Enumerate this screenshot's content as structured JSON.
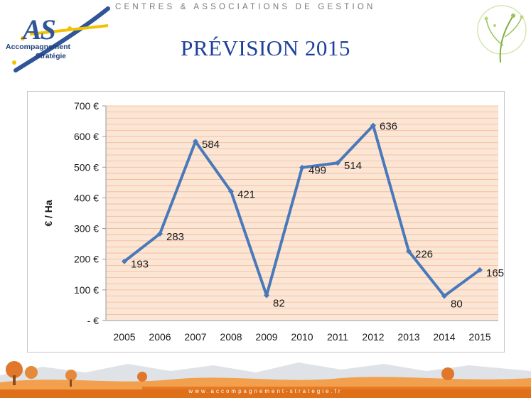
{
  "header": {
    "tagline": "CENTRES & ASSOCIATIONS DE GESTION"
  },
  "logo": {
    "mark": "AS",
    "line1": "Accompagnement",
    "line2": "Stratégie"
  },
  "slide": {
    "title": "PRÉVISION 2015"
  },
  "footer": {
    "url": "www.accompagnement-strategie.fr"
  },
  "colors": {
    "title": "#1f3f9e",
    "line": "#4a79b9",
    "plot_bg": "#fbe6d6",
    "grid": "#f3b792"
  },
  "chart_data": {
    "type": "line",
    "ylabel": "€ / Ha",
    "xlabel": "",
    "title": "",
    "categories": [
      "2005",
      "2006",
      "2007",
      "2008",
      "2009",
      "2010",
      "2011",
      "2012",
      "2013",
      "2014",
      "2015"
    ],
    "series": [
      {
        "values": [
          193,
          283,
          584,
          421,
          82,
          499,
          514,
          636,
          226,
          80,
          165
        ]
      }
    ],
    "ylim": [
      0,
      700
    ],
    "yticks": [
      0,
      100,
      200,
      300,
      400,
      500,
      600,
      700
    ],
    "ytick_labels": [
      "-   €",
      "100 €",
      "200 €",
      "300 €",
      "400 €",
      "500 €",
      "600 €",
      "700 €"
    ],
    "data_labels": [
      "193",
      "283",
      "584",
      "421",
      "82",
      "499",
      "514",
      "636",
      "226",
      "80",
      "165"
    ],
    "grid": "horizontal minor lines",
    "legend": "none"
  }
}
